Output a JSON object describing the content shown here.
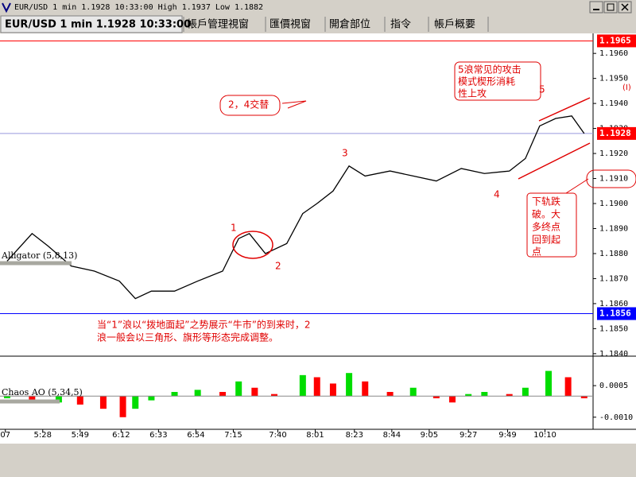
{
  "window": {
    "title": "EUR/USD 1 min 1.1928 10:33:00 High 1.1937 Low 1.1882",
    "tabs": [
      "EUR/USD 1 min 1.1928 10:33:00",
      "帳戶管理視窗",
      "匯價視窗",
      "開倉部位",
      "指令",
      "帳戶概要"
    ]
  },
  "chart_data": [
    {
      "type": "line",
      "color": "#000000",
      "x": [
        1,
        15,
        24,
        37,
        50,
        64,
        73,
        82,
        95,
        108,
        122,
        131,
        137,
        146,
        158,
        167,
        175,
        184,
        193,
        202,
        216,
        229,
        242,
        256,
        269,
        283,
        292,
        300,
        309,
        318,
        325
      ],
      "values": [
        1.1877,
        1.1888,
        1.1883,
        1.1875,
        1.1873,
        1.1869,
        1.1862,
        1.1865,
        1.1865,
        1.1869,
        1.1873,
        1.1886,
        1.1888,
        1.188,
        1.1884,
        1.1896,
        1.19,
        1.1905,
        1.1915,
        1.1911,
        1.1913,
        1.1911,
        1.1909,
        1.1914,
        1.1912,
        1.1913,
        1.1918,
        1.1931,
        1.1934,
        1.1935,
        1.1928
      ],
      "xlim": [
        -3,
        330
      ],
      "ylim": [
        1.1839,
        1.1968
      ],
      "yticks": [
        {
          "value": 1.196,
          "label": "1.1960"
        },
        {
          "value": 1.195,
          "label": "1.1950"
        },
        {
          "value": 1.194,
          "label": "1.1940"
        },
        {
          "value": 1.193,
          "label": "1.1930"
        },
        {
          "value": 1.192,
          "label": "1.1920"
        },
        {
          "value": 1.191,
          "label": "1.1910"
        },
        {
          "value": 1.19,
          "label": "1.1900"
        },
        {
          "value": 1.189,
          "label": "1.1890"
        },
        {
          "value": 1.188,
          "label": "1.1880"
        },
        {
          "value": 1.187,
          "label": "1.1870"
        },
        {
          "value": 1.186,
          "label": "1.1860"
        },
        {
          "value": 1.185,
          "label": "1.1850"
        },
        {
          "value": 1.184,
          "label": "1.1840"
        }
      ],
      "levels": [
        {
          "value": 1.1965,
          "label": "1.1965",
          "color": "#ff0000",
          "line_color": "#ff0000"
        },
        {
          "value": 1.1928,
          "label": "1.1928",
          "color": "#ff0000",
          "line_color": "#9999dd"
        },
        {
          "value": 1.1856,
          "label": "1.1856",
          "color": "#0000ff",
          "line_color": "#0000ff"
        }
      ],
      "indicator_label": "Alligator (5,8,13)",
      "annotations": {
        "wave5": [
          "5浪常见的攻击",
          "模式楔形消耗",
          "性上攻"
        ],
        "alternation": "2，4交替",
        "labels": [
          "1",
          "2",
          "3",
          "4",
          "5",
          "(I)"
        ],
        "breakdown": [
          "下轨跌",
          "破。大",
          "多终点",
          "回到起",
          "点"
        ],
        "note": [
          "当“1”浪以“拨地面起”之势展示“牛市”的到来时，2",
          "浪一般会以三角形、旗形等形态完成调整。"
        ]
      }
    },
    {
      "type": "bar",
      "name": "Chaos AO (5,34,5)",
      "up_color": "#00dd00",
      "down_color": "#ff0000",
      "x": [
        1,
        15,
        30,
        42,
        55,
        66,
        73,
        82,
        95,
        108,
        122,
        131,
        140,
        151,
        167,
        175,
        184,
        193,
        202,
        216,
        229,
        242,
        251,
        260,
        269,
        283,
        292,
        305,
        316,
        325
      ],
      "values": [
        -0.0001,
        -0.0003,
        -0.0003,
        -0.0004,
        -0.0006,
        -0.001,
        -0.0006,
        -0.0002,
        0.0002,
        0.0003,
        0.0002,
        0.0007,
        0.0004,
        0.0001,
        0.001,
        0.0009,
        0.0006,
        0.0011,
        0.0007,
        0.0002,
        0.0004,
        -0.0001,
        -0.0003,
        0.0001,
        0.0002,
        0.0001,
        0.0004,
        0.0012,
        0.0009,
        -0.0001
      ],
      "xlim": [
        -3,
        330
      ],
      "ylim": [
        -0.0015,
        0.00175
      ],
      "yticks": [
        0.0005,
        {
          "value": -0.001,
          "label": "-0.0010"
        }
      ],
      "xticks": [
        {
          "value": 0,
          "label": "07"
        },
        {
          "value": 21,
          "label": "5:28"
        },
        {
          "value": 42,
          "label": "5:49"
        },
        {
          "value": 65,
          "label": "6:12"
        },
        {
          "value": 86,
          "label": "6:33"
        },
        {
          "value": 107,
          "label": "6:54"
        },
        {
          "value": 128,
          "label": "7:15"
        },
        {
          "value": 153,
          "label": "7:40"
        },
        {
          "value": 174,
          "label": "8:01"
        },
        {
          "value": 196,
          "label": "8:23"
        },
        {
          "value": 217,
          "label": "8:44"
        },
        {
          "value": 238,
          "label": "9:05"
        },
        {
          "value": 260,
          "label": "9:27"
        },
        {
          "value": 282,
          "label": "9:49"
        },
        {
          "value": 303,
          "label": "10:10"
        }
      ]
    }
  ]
}
